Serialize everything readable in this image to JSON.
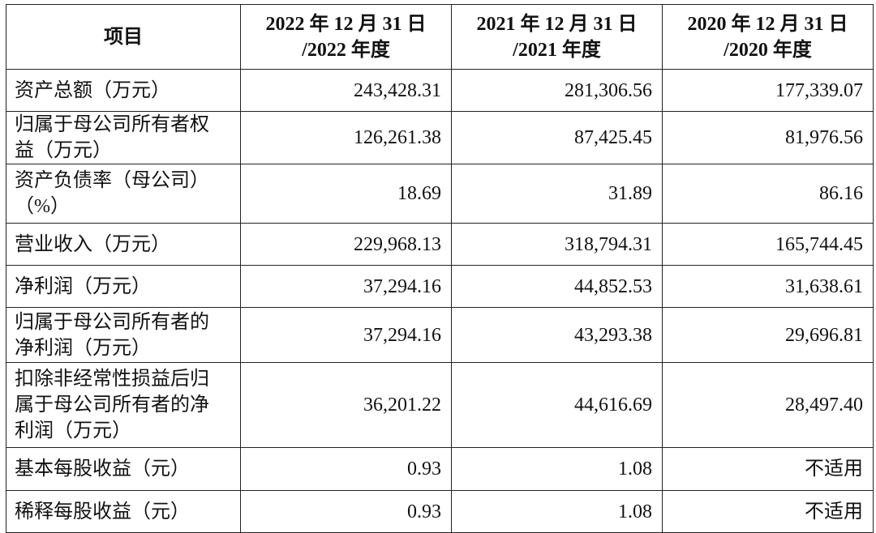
{
  "table": {
    "header": [
      [
        "项目"
      ],
      [
        "2022 年 12 月 31 日",
        "/2022 年度"
      ],
      [
        "2021 年 12 月 31 日",
        "/2021 年度"
      ],
      [
        "2020 年 12 月 31 日",
        "/2020 年度"
      ]
    ],
    "rows": [
      {
        "label": [
          "资产总额（万元）"
        ],
        "values": [
          "243,428.31",
          "281,306.56",
          "177,339.07"
        ]
      },
      {
        "label": [
          "归属于母公司所有者权",
          "益（万元）"
        ],
        "values": [
          "126,261.38",
          "87,425.45",
          "81,976.56"
        ]
      },
      {
        "label": [
          "资产负债率（母公司）",
          "（%）"
        ],
        "values": [
          "18.69",
          "31.89",
          "86.16"
        ]
      },
      {
        "label": [
          "营业收入（万元）"
        ],
        "values": [
          "229,968.13",
          "318,794.31",
          "165,744.45"
        ]
      },
      {
        "label": [
          "净利润（万元）"
        ],
        "values": [
          "37,294.16",
          "44,852.53",
          "31,638.61"
        ]
      },
      {
        "label": [
          "归属于母公司所有者的",
          "净利润（万元）"
        ],
        "values": [
          "37,294.16",
          "43,293.38",
          "29,696.81"
        ]
      },
      {
        "label": [
          "扣除非经常性损益后归",
          "属于母公司所有者的净",
          "利润（万元）"
        ],
        "values": [
          "36,201.22",
          "44,616.69",
          "28,497.40"
        ]
      },
      {
        "label": [
          "基本每股收益（元）"
        ],
        "values": [
          "0.93",
          "1.08",
          "不适用"
        ]
      },
      {
        "label": [
          "稀释每股收益（元）"
        ],
        "values": [
          "0.93",
          "1.08",
          "不适用"
        ]
      }
    ]
  }
}
